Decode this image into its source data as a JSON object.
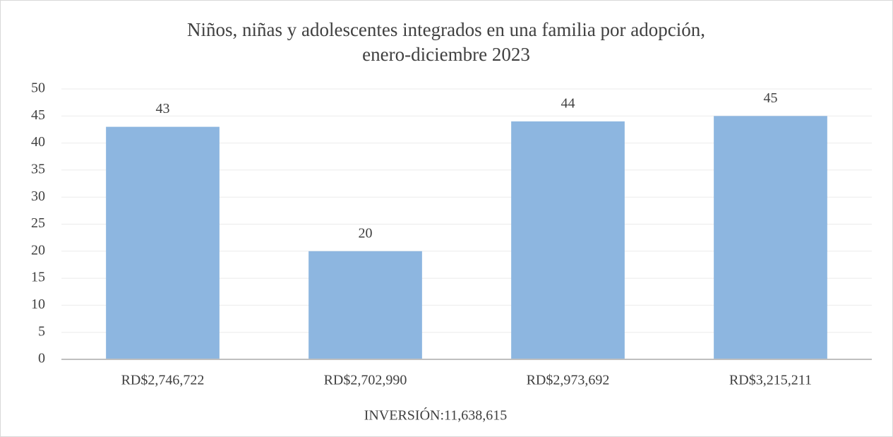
{
  "chart_data": {
    "type": "bar",
    "title": [
      "Niños, niñas y adolescentes integrados en una familia por adopción,",
      "enero-diciembre 2023"
    ],
    "x_label": "INVERSIÓN:11,638,615",
    "categories": [
      "RD$2,746,722",
      "RD$2,702,990",
      "RD$2,973,692",
      "RD$3,215,211"
    ],
    "values": [
      43,
      20,
      44,
      45
    ],
    "color": "#8db6e0",
    "ylim": [
      0,
      50
    ],
    "yticks": [
      0,
      5,
      10,
      15,
      20,
      25,
      30,
      35,
      40,
      45,
      50
    ],
    "grid": true
  }
}
